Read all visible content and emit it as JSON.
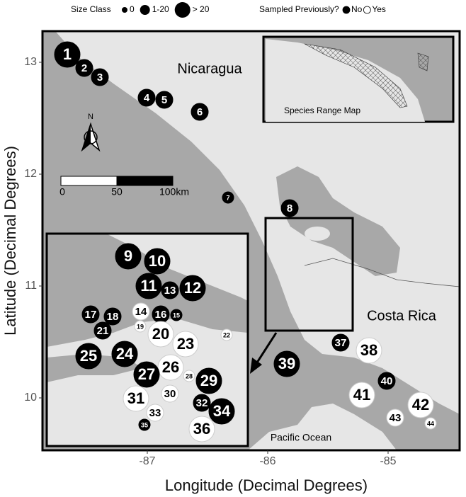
{
  "legend": {
    "size_title": "Size Class",
    "size_classes": [
      "0",
      "1-20",
      "> 20"
    ],
    "sampled_title": "Sampled Previously?",
    "sampled": [
      "No",
      "Yes"
    ]
  },
  "places": {
    "nicaragua": "Nicaragua",
    "costa_rica": "Costa Rica",
    "ocean": "Pacific Ocean"
  },
  "inset_title": "Species Range Map",
  "north": "N",
  "scale_bar": [
    "0",
    "50",
    "100km"
  ],
  "axes": {
    "x_label": "Longitude (Decimal Degrees)",
    "y_label": "Latitude (Decimal Degrees)",
    "xticks": [
      -87,
      -86,
      -85
    ],
    "yticks": [
      13,
      12,
      11,
      10
    ]
  },
  "sites": [
    {
      "label": "1",
      "size_class": "> 20",
      "sampled": "No"
    },
    {
      "label": "2",
      "size_class": "1-20",
      "sampled": "No"
    },
    {
      "label": "3",
      "size_class": "1-20",
      "sampled": "No"
    },
    {
      "label": "4",
      "size_class": "1-20",
      "sampled": "No"
    },
    {
      "label": "5",
      "size_class": "1-20",
      "sampled": "No"
    },
    {
      "label": "6",
      "size_class": "1-20",
      "sampled": "No"
    },
    {
      "label": "7",
      "size_class": "0",
      "sampled": "No"
    },
    {
      "label": "8",
      "size_class": "1-20",
      "sampled": "No"
    },
    {
      "label": "9",
      "size_class": "> 20",
      "sampled": "No"
    },
    {
      "label": "10",
      "size_class": "> 20",
      "sampled": "No"
    },
    {
      "label": "11",
      "size_class": "> 20",
      "sampled": "No"
    },
    {
      "label": "12",
      "size_class": "> 20",
      "sampled": "No"
    },
    {
      "label": "13",
      "size_class": "1-20",
      "sampled": "No"
    },
    {
      "label": "14",
      "size_class": "1-20",
      "sampled": "Yes"
    },
    {
      "label": "15",
      "size_class": "0",
      "sampled": "No"
    },
    {
      "label": "16",
      "size_class": "1-20",
      "sampled": "No"
    },
    {
      "label": "17",
      "size_class": "1-20",
      "sampled": "No"
    },
    {
      "label": "18",
      "size_class": "1-20",
      "sampled": "No"
    },
    {
      "label": "19",
      "size_class": "0",
      "sampled": "Yes"
    },
    {
      "label": "20",
      "size_class": "> 20",
      "sampled": "Yes"
    },
    {
      "label": "21",
      "size_class": "1-20",
      "sampled": "No"
    },
    {
      "label": "22",
      "size_class": "0",
      "sampled": "Yes"
    },
    {
      "label": "23",
      "size_class": "> 20",
      "sampled": "Yes"
    },
    {
      "label": "24",
      "size_class": "> 20",
      "sampled": "No"
    },
    {
      "label": "25",
      "size_class": "> 20",
      "sampled": "No"
    },
    {
      "label": "26",
      "size_class": "> 20",
      "sampled": "Yes"
    },
    {
      "label": "27",
      "size_class": "> 20",
      "sampled": "No"
    },
    {
      "label": "28",
      "size_class": "0",
      "sampled": "Yes"
    },
    {
      "label": "29",
      "size_class": "> 20",
      "sampled": "No"
    },
    {
      "label": "30",
      "size_class": "1-20",
      "sampled": "Yes"
    },
    {
      "label": "31",
      "size_class": "> 20",
      "sampled": "Yes"
    },
    {
      "label": "32",
      "size_class": "1-20",
      "sampled": "No"
    },
    {
      "label": "33",
      "size_class": "1-20",
      "sampled": "Yes"
    },
    {
      "label": "34",
      "size_class": "> 20",
      "sampled": "No"
    },
    {
      "label": "35",
      "size_class": "0",
      "sampled": "No"
    },
    {
      "label": "36",
      "size_class": "> 20",
      "sampled": "Yes"
    },
    {
      "label": "37",
      "size_class": "1-20",
      "sampled": "No"
    },
    {
      "label": "38",
      "size_class": "> 20",
      "sampled": "Yes"
    },
    {
      "label": "39",
      "size_class": "> 20",
      "sampled": "No"
    },
    {
      "label": "40",
      "size_class": "1-20",
      "sampled": "No"
    },
    {
      "label": "41",
      "size_class": "> 20",
      "sampled": "Yes"
    },
    {
      "label": "42",
      "size_class": "> 20",
      "sampled": "Yes"
    },
    {
      "label": "43",
      "size_class": "1-20",
      "sampled": "Yes"
    },
    {
      "label": "44",
      "size_class": "0",
      "sampled": "Yes"
    }
  ]
}
